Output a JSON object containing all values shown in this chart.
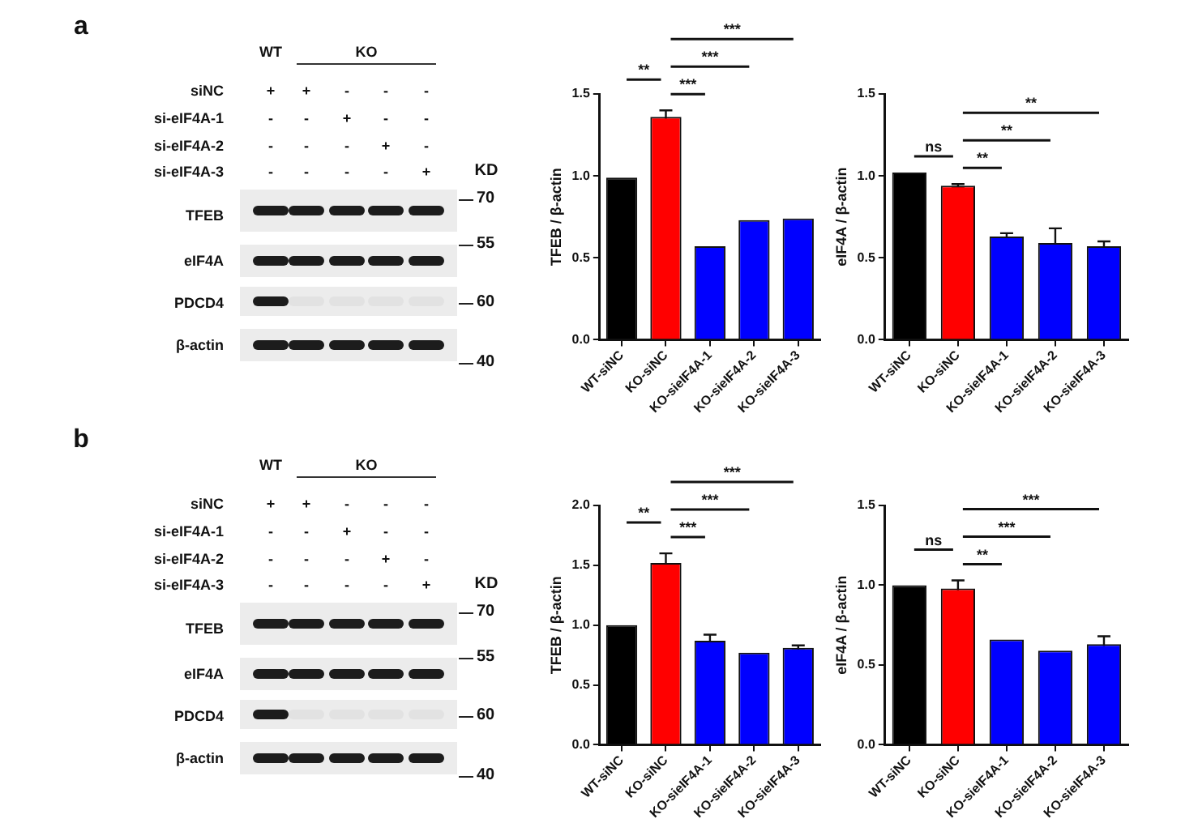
{
  "chart_data": [
    {
      "type": "other",
      "title": "a",
      "annotations": [
        "WT",
        "KO",
        "siNC",
        "si-eIF4A-1",
        "si-eIF4A-2",
        "si-eIF4A-3",
        "+",
        "+",
        "-",
        "-",
        "-",
        "-",
        "-",
        "+",
        "-",
        "-",
        "-",
        "-",
        "-",
        "+",
        "-",
        "-",
        "-",
        "-",
        "-",
        "+",
        "KD",
        "TFEB",
        "eIF4A",
        "PDCD4",
        "β-actin",
        "70",
        "55",
        "60",
        "40"
      ]
    },
    {
      "type": "bar",
      "ylabel": "TFEB / β-actin",
      "categories": [
        "WT-siNC",
        "KO-siNC",
        "KO-sieIF4A-1",
        "KO-sieIF4A-2",
        "KO-sieIF4A-3"
      ],
      "values": [
        0.99,
        1.36,
        0.57,
        0.73,
        0.74
      ],
      "errors": [
        null,
        0.04,
        null,
        null,
        null
      ],
      "colors": [
        "#000000",
        "#ff0000",
        "#0000ff",
        "#0000ff",
        "#0000ff"
      ],
      "ylim": [
        0,
        1.5
      ],
      "yticks": [
        {
          "value": 0,
          "label": "0.0"
        },
        {
          "value": 0.5,
          "label": "0.5"
        },
        {
          "value": 1,
          "label": "1.0"
        },
        {
          "value": 1.5,
          "label": "1.5"
        }
      ],
      "annotations": [
        "**",
        "***",
        "***",
        "***"
      ]
    },
    {
      "type": "bar",
      "ylabel": "eIF4A / β-actin",
      "categories": [
        "WT-siNC",
        "KO-siNC",
        "KO-sieIF4A-1",
        "KO-sieIF4A-2",
        "KO-sieIF4A-3"
      ],
      "values": [
        1.02,
        0.94,
        0.63,
        0.59,
        0.57
      ],
      "errors": [
        null,
        0.01,
        0.02,
        0.09,
        0.03
      ],
      "colors": [
        "#000000",
        "#ff0000",
        "#0000ff",
        "#0000ff",
        "#0000ff"
      ],
      "ylim": [
        0,
        1.5
      ],
      "yticks": [
        {
          "value": 0,
          "label": "0.0"
        },
        {
          "value": 0.5,
          "label": "0.5"
        },
        {
          "value": 1,
          "label": "1.0"
        },
        {
          "value": 1.5,
          "label": "1.5"
        }
      ],
      "annotations": [
        "ns",
        "**",
        "**",
        "**"
      ]
    },
    {
      "type": "other",
      "title": "b",
      "annotations": [
        "WT",
        "KO",
        "siNC",
        "si-eIF4A-1",
        "si-eIF4A-2",
        "si-eIF4A-3",
        "+",
        "+",
        "-",
        "-",
        "-",
        "-",
        "-",
        "+",
        "-",
        "-",
        "-",
        "-",
        "-",
        "+",
        "-",
        "-",
        "-",
        "-",
        "-",
        "+",
        "KD",
        "TFEB",
        "eIF4A",
        "PDCD4",
        "β-actin",
        "70",
        "55",
        "60",
        "40"
      ]
    },
    {
      "type": "bar",
      "ylabel": "TFEB / β-actin",
      "categories": [
        "WT-siNC",
        "KO-siNC",
        "KO-sieIF4A-1",
        "KO-sieIF4A-2",
        "KO-sieIF4A-3"
      ],
      "values": [
        1.0,
        1.52,
        0.87,
        0.77,
        0.81
      ],
      "errors": [
        null,
        0.08,
        0.05,
        null,
        0.02
      ],
      "colors": [
        "#000000",
        "#ff0000",
        "#0000ff",
        "#0000ff",
        "#0000ff"
      ],
      "ylim": [
        0,
        2
      ],
      "yticks": [
        {
          "value": 0,
          "label": "0.0"
        },
        {
          "value": 0.5,
          "label": "0.5"
        },
        {
          "value": 1,
          "label": "1.0"
        },
        {
          "value": 1.5,
          "label": "1.5"
        },
        {
          "value": 2,
          "label": "2.0"
        }
      ],
      "annotations": [
        "**",
        "***",
        "***",
        "***"
      ]
    },
    {
      "type": "bar",
      "ylabel": "eIF4A / β-actin",
      "categories": [
        "WT-siNC",
        "KO-siNC",
        "KO-sieIF4A-1",
        "KO-sieIF4A-2",
        "KO-sieIF4A-3"
      ],
      "values": [
        1.0,
        0.98,
        0.66,
        0.59,
        0.63
      ],
      "errors": [
        null,
        0.05,
        null,
        null,
        0.05
      ],
      "colors": [
        "#000000",
        "#ff0000",
        "#0000ff",
        "#0000ff",
        "#0000ff"
      ],
      "ylim": [
        0,
        1.5
      ],
      "yticks": [
        {
          "value": 0,
          "label": "0.0"
        },
        {
          "value": 0.5,
          "label": "0.5"
        },
        {
          "value": 1,
          "label": "1.0"
        },
        {
          "value": 1.5,
          "label": "1.5"
        }
      ],
      "annotations": [
        "ns",
        "**",
        "***",
        "***"
      ]
    }
  ]
}
